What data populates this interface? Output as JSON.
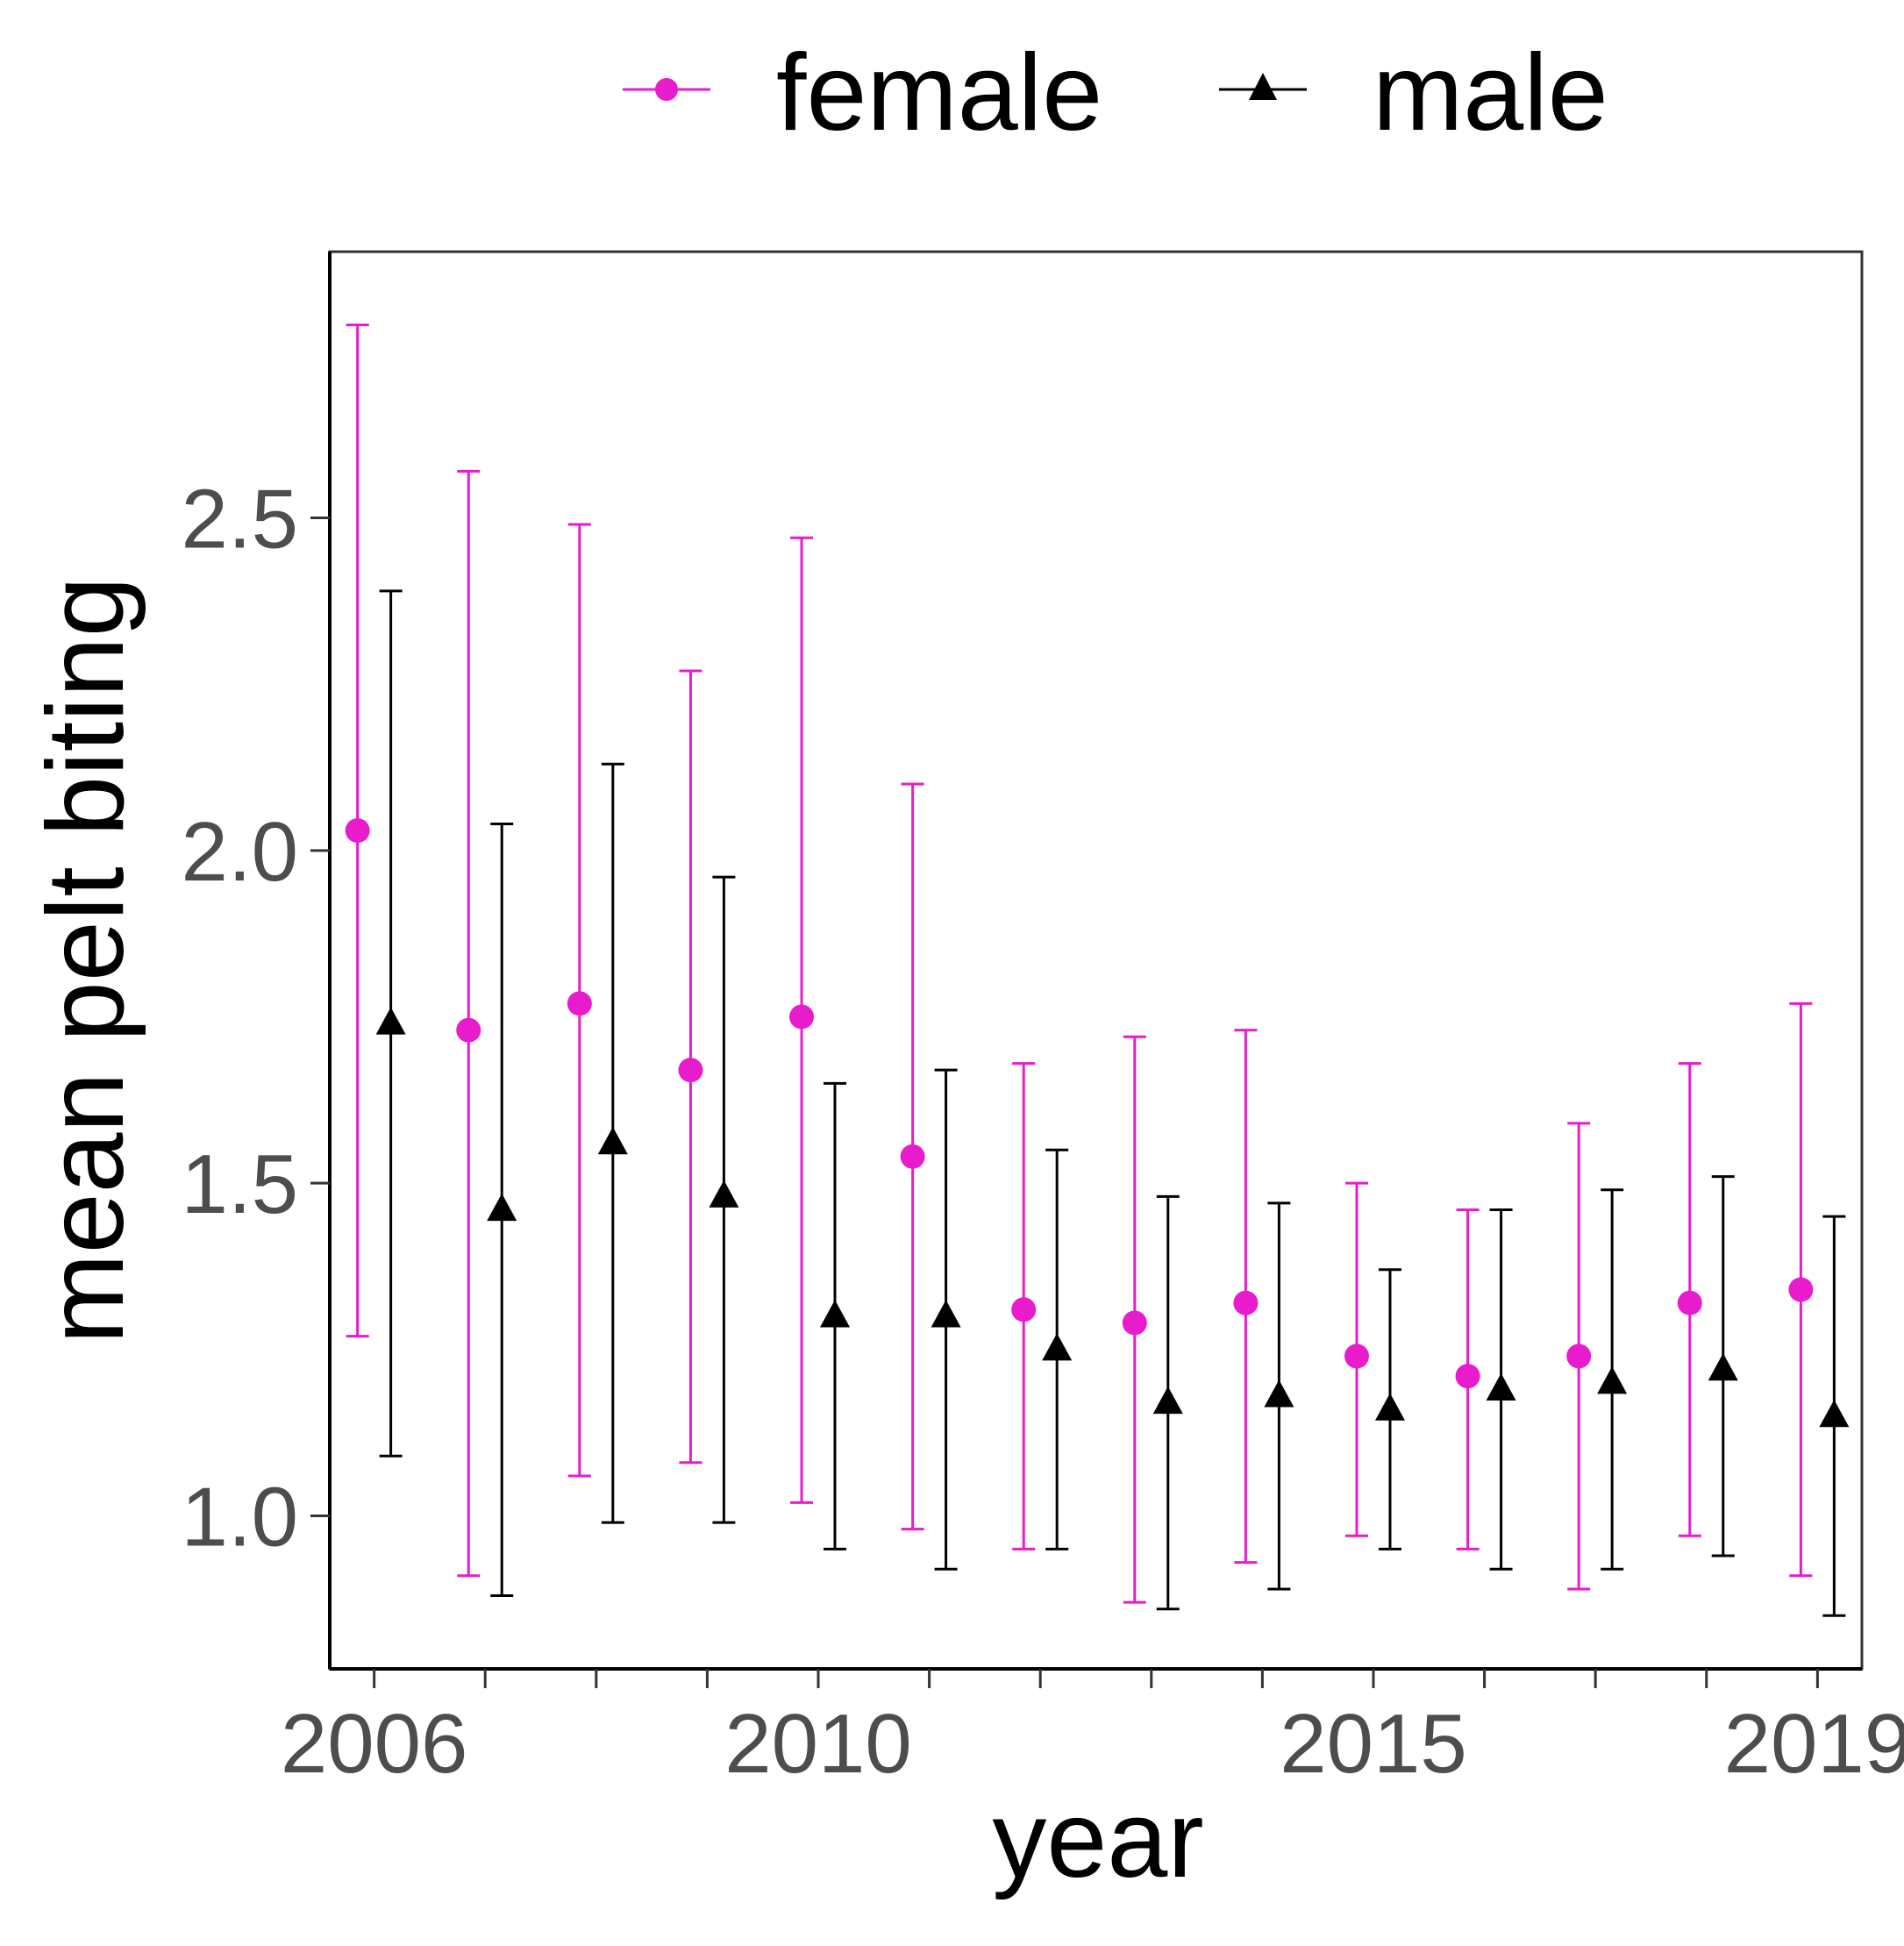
{
  "chart_data": {
    "type": "scatter",
    "title": "",
    "xlabel": "year",
    "ylabel": "mean pelt biting",
    "xlim": [
      2005.6,
      2019.4
    ],
    "ylim": [
      0.77,
      2.9
    ],
    "xticks": [
      2006,
      2007,
      2008,
      2009,
      2010,
      2011,
      2012,
      2013,
      2014,
      2015,
      2016,
      2017,
      2018,
      2019
    ],
    "xtick_labels": [
      {
        "value": 2006,
        "label": "2006"
      },
      {
        "value": 2010,
        "label": "2010"
      },
      {
        "value": 2015,
        "label": "2015"
      },
      {
        "value": 2019,
        "label": "2019"
      }
    ],
    "yticks": [
      {
        "value": 1.0,
        "label": "1.0"
      },
      {
        "value": 1.5,
        "label": "1.5"
      },
      {
        "value": 2.0,
        "label": "2.0"
      },
      {
        "value": 2.5,
        "label": "2.5"
      }
    ],
    "grid": false,
    "legend_position": "top",
    "dodge": 0.15,
    "series": [
      {
        "name": "female",
        "color": "#e81ccd",
        "marker": "circle",
        "x": [
          2006,
          2007,
          2008,
          2009,
          2010,
          2011,
          2012,
          2013,
          2014,
          2015,
          2016,
          2017,
          2018,
          2019
        ],
        "mean": [
          2.03,
          1.73,
          1.77,
          1.67,
          1.75,
          1.54,
          1.31,
          1.29,
          1.32,
          1.24,
          1.21,
          1.24,
          1.32,
          1.34
        ],
        "lower": [
          1.27,
          0.91,
          1.06,
          1.08,
          1.02,
          0.98,
          0.95,
          0.87,
          0.93,
          0.97,
          0.95,
          0.89,
          0.97,
          0.91
        ],
        "upper": [
          2.79,
          2.57,
          2.49,
          2.27,
          2.47,
          2.1,
          1.68,
          1.72,
          1.73,
          1.5,
          1.46,
          1.59,
          1.68,
          1.77
        ]
      },
      {
        "name": "male",
        "color": "#000000",
        "marker": "triangle",
        "x": [
          2006,
          2007,
          2008,
          2009,
          2010,
          2011,
          2012,
          2013,
          2014,
          2015,
          2016,
          2017,
          2018,
          2019
        ],
        "mean": [
          1.74,
          1.46,
          1.56,
          1.48,
          1.3,
          1.3,
          1.25,
          1.17,
          1.18,
          1.16,
          1.19,
          1.2,
          1.22,
          1.15
        ],
        "lower": [
          1.09,
          0.88,
          0.99,
          0.99,
          0.95,
          0.92,
          0.95,
          0.86,
          0.89,
          0.95,
          0.92,
          0.92,
          0.94,
          0.85
        ],
        "upper": [
          2.39,
          2.04,
          2.13,
          1.96,
          1.65,
          1.67,
          1.55,
          1.48,
          1.47,
          1.37,
          1.46,
          1.49,
          1.51,
          1.45
        ]
      }
    ]
  }
}
